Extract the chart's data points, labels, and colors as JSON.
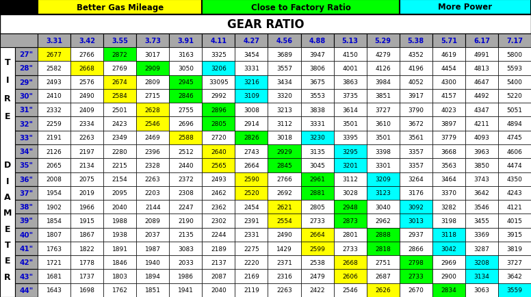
{
  "header_labels": [
    "Better Gas Mileage",
    "Close to Factory Ratio",
    "More Power"
  ],
  "header_colors": [
    "#FFFF00",
    "#00FF00",
    "#00FFFF"
  ],
  "title": "GEAR RATIO",
  "col_headers": [
    "3.31",
    "3.42",
    "3.55",
    "3.73",
    "3.91",
    "4.11",
    "4.27",
    "4.56",
    "4.88",
    "5.13",
    "5.29",
    "5.38",
    "5.71",
    "6.17",
    "7.17"
  ],
  "row_headers": [
    "27\"",
    "28\"",
    "29\"",
    "30\"",
    "31\"",
    "32\"",
    "33\"",
    "34\"",
    "35\"",
    "36\"",
    "37\"",
    "38\"",
    "39\"",
    "40\"",
    "41\"",
    "42\"",
    "43\"",
    "44\""
  ],
  "side_label_top": "T\nI\nR\nE",
  "side_label_bot": "D\nI\nA\nM\nE\nT\nE\nR",
  "data": [
    [
      2677,
      2766,
      2872,
      3017,
      3163,
      3325,
      3454,
      3689,
      3947,
      4150,
      4279,
      4352,
      4619,
      4991,
      5800
    ],
    [
      2582,
      2668,
      2769,
      2909,
      3050,
      3206,
      3331,
      3557,
      3806,
      4001,
      4126,
      4196,
      4454,
      4813,
      5593
    ],
    [
      2493,
      2576,
      2674,
      2809,
      2945,
      33095,
      3216,
      3434,
      3675,
      3863,
      3984,
      4052,
      4300,
      4647,
      5400
    ],
    [
      2410,
      2490,
      2584,
      2715,
      2846,
      2992,
      3109,
      3320,
      3553,
      3735,
      3851,
      3917,
      4157,
      4492,
      5220
    ],
    [
      2332,
      2409,
      2501,
      2628,
      2755,
      2896,
      3008,
      3213,
      3838,
      3614,
      3727,
      3790,
      4023,
      4347,
      5051
    ],
    [
      2259,
      2334,
      2423,
      2546,
      2696,
      2805,
      2914,
      3112,
      3331,
      3501,
      3610,
      3672,
      3897,
      4211,
      4894
    ],
    [
      2191,
      2263,
      2349,
      2469,
      2588,
      2720,
      2826,
      3018,
      3230,
      3395,
      3501,
      3561,
      3779,
      4093,
      4745
    ],
    [
      2126,
      2197,
      2280,
      2396,
      2512,
      2640,
      2743,
      2929,
      3135,
      3295,
      3398,
      3357,
      3668,
      3963,
      4606
    ],
    [
      2065,
      2134,
      2215,
      2328,
      2440,
      2565,
      2664,
      2845,
      3045,
      3201,
      3301,
      3357,
      3563,
      3850,
      4474
    ],
    [
      2008,
      2075,
      2154,
      2263,
      2372,
      2493,
      2590,
      2766,
      2961,
      3112,
      3209,
      3264,
      3464,
      3743,
      4350
    ],
    [
      1954,
      2019,
      2095,
      2203,
      2308,
      2462,
      2520,
      2692,
      2881,
      3028,
      3123,
      3176,
      3370,
      3642,
      4243
    ],
    [
      1902,
      1966,
      2040,
      2144,
      2247,
      2362,
      2454,
      2621,
      2805,
      2948,
      3040,
      3092,
      3282,
      3546,
      4121
    ],
    [
      1854,
      1915,
      1988,
      2089,
      2190,
      2302,
      2391,
      2554,
      2733,
      2873,
      2962,
      3013,
      3198,
      3455,
      4015
    ],
    [
      1807,
      1867,
      1938,
      2037,
      2135,
      2244,
      2331,
      2490,
      2664,
      2801,
      2888,
      2937,
      3118,
      3369,
      3915
    ],
    [
      1763,
      1822,
      1891,
      1987,
      3083,
      2189,
      2275,
      1429,
      2599,
      2733,
      2818,
      2866,
      3042,
      3287,
      3819
    ],
    [
      1721,
      1778,
      1846,
      1940,
      2033,
      2137,
      2220,
      2371,
      2538,
      2668,
      2751,
      2798,
      2969,
      3208,
      3727
    ],
    [
      1681,
      1737,
      1803,
      1894,
      1986,
      2087,
      2169,
      2316,
      2479,
      2606,
      2687,
      2733,
      2900,
      3134,
      3642
    ],
    [
      1643,
      1698,
      1762,
      1851,
      1941,
      2040,
      2119,
      2263,
      2422,
      2546,
      2626,
      2670,
      2834,
      3063,
      3559
    ]
  ],
  "cell_colors": [
    [
      "#FFFF00",
      "#FFFFFF",
      "#00FF00",
      "#FFFFFF",
      "#FFFFFF",
      "#FFFFFF",
      "#FFFFFF",
      "#FFFFFF",
      "#FFFFFF",
      "#FFFFFF",
      "#FFFFFF",
      "#FFFFFF",
      "#FFFFFF",
      "#FFFFFF",
      "#FFFFFF"
    ],
    [
      "#FFFFFF",
      "#FFFF00",
      "#FFFFFF",
      "#00FF00",
      "#FFFFFF",
      "#00FFFF",
      "#FFFFFF",
      "#FFFFFF",
      "#FFFFFF",
      "#FFFFFF",
      "#FFFFFF",
      "#FFFFFF",
      "#FFFFFF",
      "#FFFFFF",
      "#FFFFFF"
    ],
    [
      "#FFFFFF",
      "#FFFFFF",
      "#FFFF00",
      "#FFFFFF",
      "#00FF00",
      "#FFFFFF",
      "#00FFFF",
      "#FFFFFF",
      "#FFFFFF",
      "#FFFFFF",
      "#FFFFFF",
      "#FFFFFF",
      "#FFFFFF",
      "#FFFFFF",
      "#FFFFFF"
    ],
    [
      "#FFFFFF",
      "#FFFFFF",
      "#FFFF00",
      "#FFFFFF",
      "#00FF00",
      "#FFFFFF",
      "#00FFFF",
      "#FFFFFF",
      "#FFFFFF",
      "#FFFFFF",
      "#FFFFFF",
      "#FFFFFF",
      "#FFFFFF",
      "#FFFFFF",
      "#FFFFFF"
    ],
    [
      "#FFFFFF",
      "#FFFFFF",
      "#FFFFFF",
      "#FFFF00",
      "#FFFFFF",
      "#00FF00",
      "#FFFFFF",
      "#FFFFFF",
      "#FFFFFF",
      "#FFFFFF",
      "#FFFFFF",
      "#FFFFFF",
      "#FFFFFF",
      "#FFFFFF",
      "#FFFFFF"
    ],
    [
      "#FFFFFF",
      "#FFFFFF",
      "#FFFFFF",
      "#FFFF00",
      "#FFFFFF",
      "#00FF00",
      "#FFFFFF",
      "#FFFFFF",
      "#FFFFFF",
      "#FFFFFF",
      "#FFFFFF",
      "#FFFFFF",
      "#FFFFFF",
      "#FFFFFF",
      "#FFFFFF"
    ],
    [
      "#FFFFFF",
      "#FFFFFF",
      "#FFFFFF",
      "#FFFFFF",
      "#FFFF00",
      "#FFFFFF",
      "#00FF00",
      "#FFFFFF",
      "#00FFFF",
      "#FFFFFF",
      "#FFFFFF",
      "#FFFFFF",
      "#FFFFFF",
      "#FFFFFF",
      "#FFFFFF"
    ],
    [
      "#FFFFFF",
      "#FFFFFF",
      "#FFFFFF",
      "#FFFFFF",
      "#FFFFFF",
      "#FFFF00",
      "#FFFFFF",
      "#00FF00",
      "#FFFFFF",
      "#00FFFF",
      "#FFFFFF",
      "#FFFFFF",
      "#FFFFFF",
      "#FFFFFF",
      "#FFFFFF"
    ],
    [
      "#FFFFFF",
      "#FFFFFF",
      "#FFFFFF",
      "#FFFFFF",
      "#FFFFFF",
      "#FFFF00",
      "#FFFFFF",
      "#00FF00",
      "#FFFFFF",
      "#00FFFF",
      "#FFFFFF",
      "#FFFFFF",
      "#FFFFFF",
      "#FFFFFF",
      "#FFFFFF"
    ],
    [
      "#FFFFFF",
      "#FFFFFF",
      "#FFFFFF",
      "#FFFFFF",
      "#FFFFFF",
      "#FFFFFF",
      "#FFFF00",
      "#FFFFFF",
      "#00FF00",
      "#FFFFFF",
      "#00FFFF",
      "#FFFFFF",
      "#FFFFFF",
      "#FFFFFF",
      "#FFFFFF"
    ],
    [
      "#FFFFFF",
      "#FFFFFF",
      "#FFFFFF",
      "#FFFFFF",
      "#FFFFFF",
      "#FFFFFF",
      "#FFFF00",
      "#FFFFFF",
      "#00FF00",
      "#FFFFFF",
      "#00FFFF",
      "#FFFFFF",
      "#FFFFFF",
      "#FFFFFF",
      "#FFFFFF"
    ],
    [
      "#FFFFFF",
      "#FFFFFF",
      "#FFFFFF",
      "#FFFFFF",
      "#FFFFFF",
      "#FFFFFF",
      "#FFFFFF",
      "#FFFF00",
      "#FFFFFF",
      "#00FF00",
      "#FFFFFF",
      "#00FFFF",
      "#FFFFFF",
      "#FFFFFF",
      "#FFFFFF"
    ],
    [
      "#FFFFFF",
      "#FFFFFF",
      "#FFFFFF",
      "#FFFFFF",
      "#FFFFFF",
      "#FFFFFF",
      "#FFFFFF",
      "#FFFF00",
      "#FFFFFF",
      "#00FF00",
      "#FFFFFF",
      "#00FFFF",
      "#FFFFFF",
      "#FFFFFF",
      "#FFFFFF"
    ],
    [
      "#FFFFFF",
      "#FFFFFF",
      "#FFFFFF",
      "#FFFFFF",
      "#FFFFFF",
      "#FFFFFF",
      "#FFFFFF",
      "#FFFFFF",
      "#FFFF00",
      "#FFFFFF",
      "#00FF00",
      "#FFFFFF",
      "#00FFFF",
      "#FFFFFF",
      "#FFFFFF"
    ],
    [
      "#FFFFFF",
      "#FFFFFF",
      "#FFFFFF",
      "#FFFFFF",
      "#FFFFFF",
      "#FFFFFF",
      "#FFFFFF",
      "#FFFFFF",
      "#FFFF00",
      "#FFFFFF",
      "#00FF00",
      "#FFFFFF",
      "#00FFFF",
      "#FFFFFF",
      "#FFFFFF"
    ],
    [
      "#FFFFFF",
      "#FFFFFF",
      "#FFFFFF",
      "#FFFFFF",
      "#FFFFFF",
      "#FFFFFF",
      "#FFFFFF",
      "#FFFFFF",
      "#FFFFFF",
      "#FFFF00",
      "#FFFFFF",
      "#00FF00",
      "#FFFFFF",
      "#00FFFF",
      "#FFFFFF"
    ],
    [
      "#FFFFFF",
      "#FFFFFF",
      "#FFFFFF",
      "#FFFFFF",
      "#FFFFFF",
      "#FFFFFF",
      "#FFFFFF",
      "#FFFFFF",
      "#FFFFFF",
      "#FFFF00",
      "#FFFFFF",
      "#00FF00",
      "#FFFFFF",
      "#00FFFF",
      "#FFFFFF"
    ],
    [
      "#FFFFFF",
      "#FFFFFF",
      "#FFFFFF",
      "#FFFFFF",
      "#FFFFFF",
      "#FFFFFF",
      "#FFFFFF",
      "#FFFFFF",
      "#FFFFFF",
      "#FFFFFF",
      "#FFFF00",
      "#FFFFFF",
      "#00FF00",
      "#FFFFFF",
      "#00FFFF"
    ]
  ],
  "header_col_spans": [
    5,
    6,
    4
  ],
  "col_header_bg": "#A8A8A8",
  "row_header_bg": "#A8A8A8",
  "row_header_text_color": "#0000CC",
  "col_header_text_color": "#0000CC",
  "side_bg": "#FFFFFF",
  "border_color": "#000000",
  "bg_color": "#FFFFFF",
  "title_bg": "#FFFFFF"
}
